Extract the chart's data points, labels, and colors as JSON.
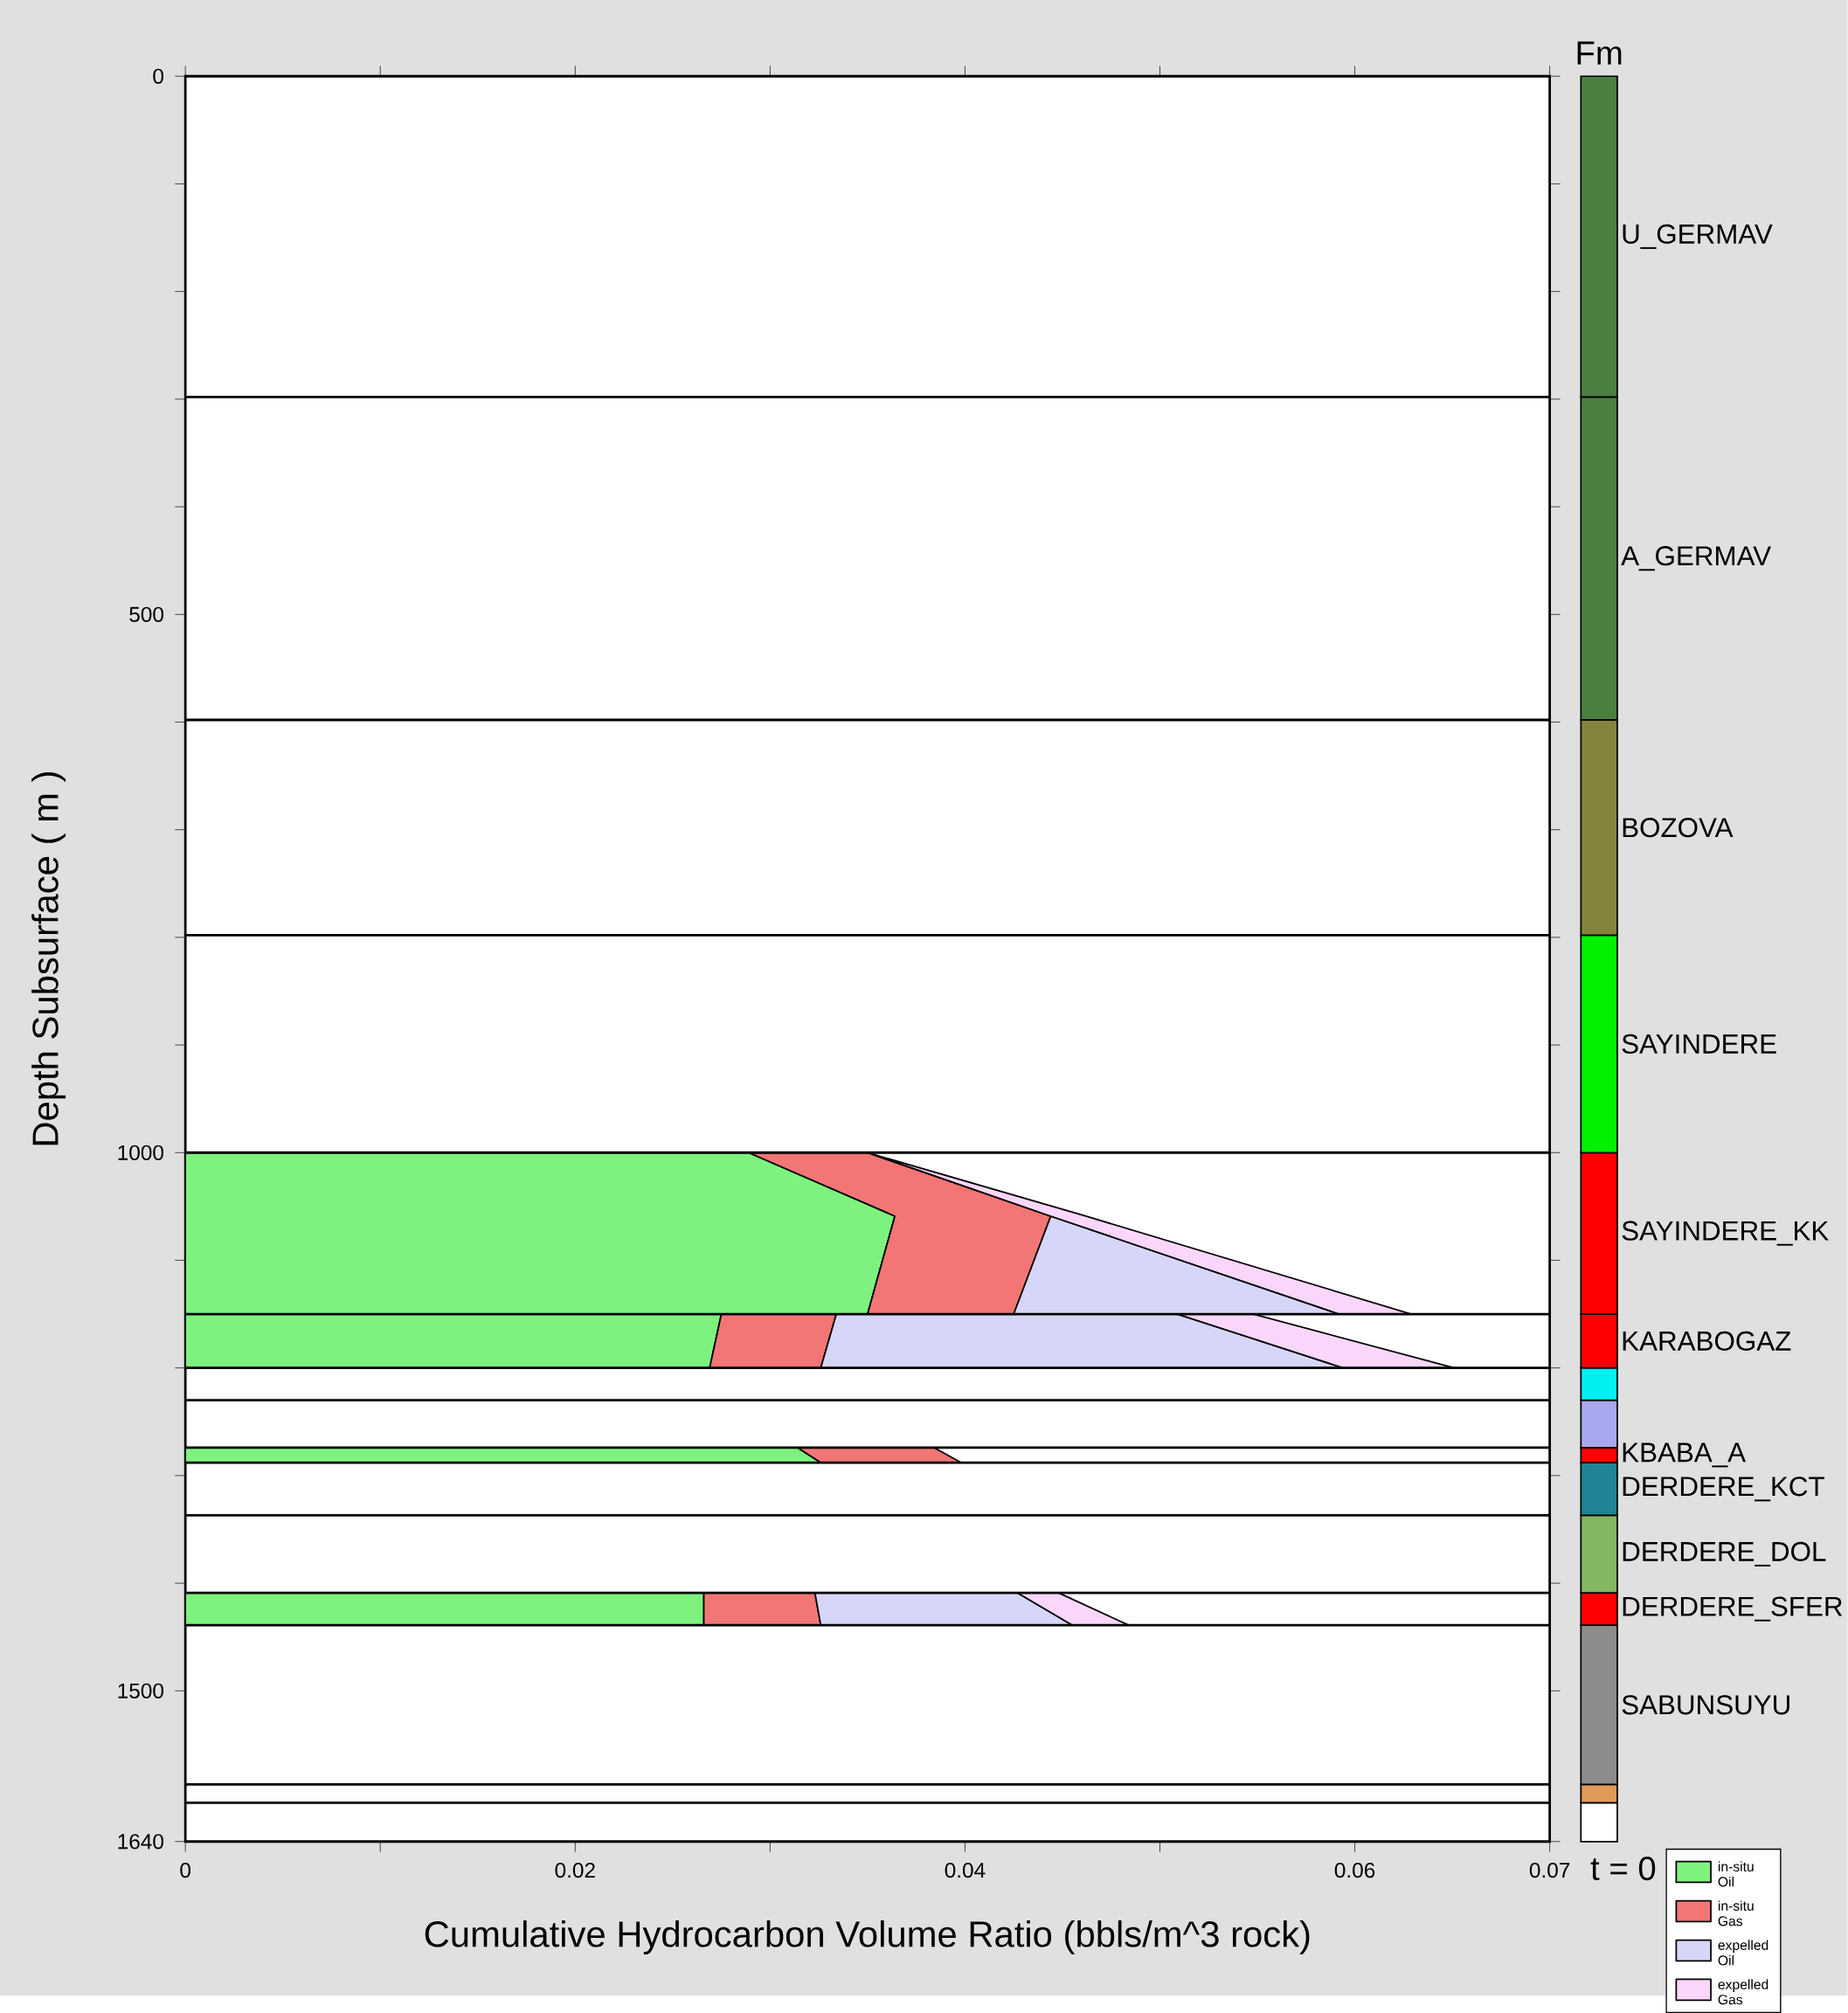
{
  "chart_data": [
    {
      "type": "area",
      "stacked": true,
      "orientation": "horizontal",
      "xlabel": "Cumulative Hydrocarbon Volume Ratio (bbls/m^3 rock)",
      "ylabel": "Depth Subsurface ( m )",
      "x": [
        1000,
        1059,
        1150,
        null,
        1150,
        1200,
        null,
        1274,
        1288,
        null,
        1409,
        1439
      ],
      "series": [
        {
          "name": "in-situ Oil",
          "color": "#7ef27e",
          "values": [
            0.0289,
            0.0364,
            0.035,
            null,
            0.0275,
            0.0269,
            null,
            0.0314,
            0.0326,
            null,
            0.0266,
            0.0266
          ]
        },
        {
          "name": "in-situ Gas",
          "color": "#f27676",
          "values": [
            0.0061,
            0.008,
            0.0075,
            null,
            0.0059,
            0.0057,
            null,
            0.007,
            0.0072,
            null,
            0.0057,
            0.006
          ]
        },
        {
          "name": "expelled Oil",
          "color": "#d6d6fb",
          "values": [
            0,
            0,
            0.0167,
            null,
            0.0175,
            0.0268,
            null,
            null,
            null,
            null,
            0.0104,
            0.0129
          ]
        },
        {
          "name": "expelled Gas",
          "color": "#fbd6fb",
          "values": [
            0,
            0.0018,
            0.0037,
            null,
            0.0039,
            0.0057,
            null,
            null,
            null,
            null,
            0.0021,
            0.0029
          ]
        }
      ],
      "xlim": [
        0,
        0.07
      ],
      "xticks": [
        0,
        {
          "value": 0.01,
          "label": null
        },
        0.02,
        {
          "value": 0.03,
          "label": null
        },
        0.04,
        {
          "value": 0.05,
          "label": null
        },
        0.06,
        0.07
      ],
      "ylim": [
        1640,
        0
      ],
      "yticks": [
        0,
        {
          "value": 100,
          "label": null
        },
        {
          "value": 200,
          "label": null
        },
        {
          "value": 300,
          "label": null
        },
        {
          "value": 400,
          "label": null
        },
        500,
        {
          "value": 600,
          "label": null
        },
        {
          "value": 700,
          "label": null
        },
        {
          "value": 800,
          "label": null
        },
        {
          "value": 900,
          "label": null
        },
        1000,
        {
          "value": 1100,
          "label": null
        },
        {
          "value": 1200,
          "label": null
        },
        {
          "value": 1300,
          "label": null
        },
        {
          "value": 1400,
          "label": null
        },
        1500,
        1640
      ],
      "ref_lines": [
        {
          "axis": "y",
          "value": 298
        },
        {
          "axis": "y",
          "value": 598
        },
        {
          "axis": "y",
          "value": 798
        },
        {
          "axis": "y",
          "value": 1000
        },
        {
          "axis": "y",
          "value": 1150
        },
        {
          "axis": "y",
          "value": 1200
        },
        {
          "axis": "y",
          "value": 1230
        },
        {
          "axis": "y",
          "value": 1274
        },
        {
          "axis": "y",
          "value": 1288
        },
        {
          "axis": "y",
          "value": 1337
        },
        {
          "axis": "y",
          "value": 1409
        },
        {
          "axis": "y",
          "value": 1439
        },
        {
          "axis": "y",
          "value": 1587
        },
        {
          "axis": "y",
          "value": 1604
        }
      ],
      "legend": "bottom right"
    },
    {
      "type": "bar",
      "stacked": true,
      "title": "Fm",
      "categories": [
        "t = 0"
      ],
      "ylim": [
        1640,
        0
      ],
      "tick_labels": "x",
      "series": [
        {
          "name": "U_GERMAV",
          "color": "#4b7f3f",
          "values": [
            298
          ]
        },
        {
          "name": "A_GERMAV",
          "color": "#4b7f3f",
          "values": [
            300
          ]
        },
        {
          "name": "BOZOVA",
          "color": "#84843c",
          "values": [
            200
          ]
        },
        {
          "name": "SAYINDERE",
          "color": "#00f000",
          "values": [
            202
          ]
        },
        {
          "name": "SAYINDERE_KK",
          "color": "#ff0000",
          "values": [
            150
          ]
        },
        {
          "name": "KARABOGAZ",
          "color": "#ff0000",
          "values": [
            50
          ]
        },
        {
          "color": "#00f0f0",
          "values": [
            30
          ]
        },
        {
          "color": "#a8a8f0",
          "values": [
            44
          ]
        },
        {
          "name": "KBABA_A",
          "color": "#ff0000",
          "values": [
            14
          ]
        },
        {
          "name": "DERDERE_KCT",
          "color": "#1f8494",
          "values": [
            49
          ]
        },
        {
          "name": "DERDERE_DOL",
          "color": "#84b860",
          "values": [
            72
          ]
        },
        {
          "name": "DERDERE_SFER",
          "color": "#ff0000",
          "values": [
            30
          ]
        },
        {
          "name": "SABUNSUYU",
          "color": "#8c8c8c",
          "values": [
            148
          ]
        },
        {
          "color": "#e09a58",
          "values": [
            17
          ]
        },
        {
          "color": "#ffffff",
          "values": [
            36
          ]
        }
      ]
    }
  ]
}
